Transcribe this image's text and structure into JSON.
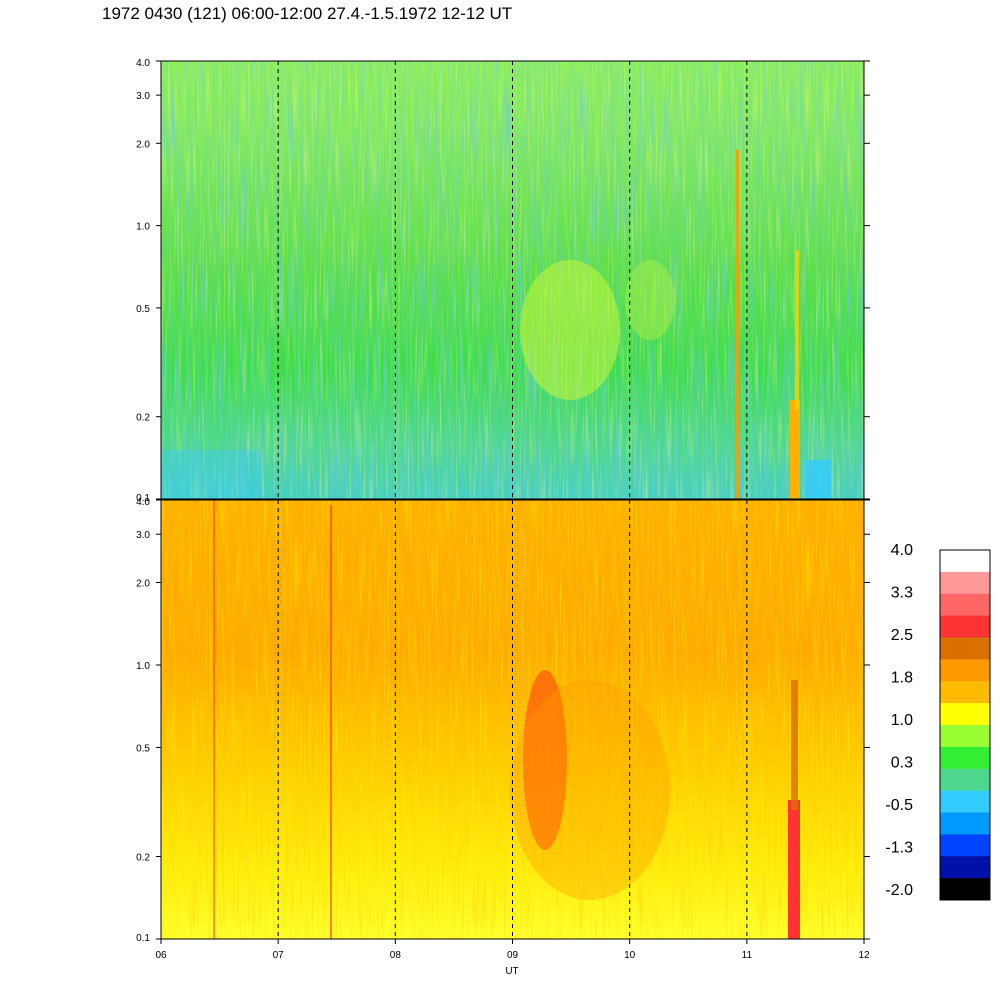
{
  "title": "1972 0430 (121) 06:00-12:00 27.4.-1.5.1972  12-12 UT",
  "chart_data": {
    "type": "heatmap",
    "title": "1972 0430 (121) 06:00-12:00 27.4.-1.5.1972  12-12 UT",
    "xlabel": "UT",
    "x_ticks": [
      "06",
      "07",
      "08",
      "09",
      "10",
      "11",
      "12"
    ],
    "x_range_hours": [
      6,
      12
    ],
    "y_scale": "log",
    "y_ticks": [
      "0.1",
      "0.2",
      "0.5",
      "1.0",
      "2.0",
      "3.0",
      "4.0"
    ],
    "y_tick_values": [
      0.1,
      0.2,
      0.5,
      1.0,
      2.0,
      3.0,
      4.0
    ],
    "ylim": [
      0.1,
      4.0
    ],
    "panels": [
      {
        "name": "upper",
        "dominant_level": 0.3,
        "notes": "mostly green/teal; yellow patch ~09-10 UT at 0.3-0.7; orange streaks near 11 and 11.4 UT"
      },
      {
        "name": "lower",
        "dominant_level": 1.8,
        "notes": "mostly yellow/orange; red band ~09.2 UT at 0.2-0.6; red streak ~11.4 UT at 0.1-0.3"
      }
    ],
    "vertical_dashed_lines_hours": [
      7,
      8,
      9,
      10,
      11
    ],
    "colorbar": {
      "tick_labels": [
        "4.0",
        "3.3",
        "2.5",
        "1.8",
        "1.0",
        "0.3",
        "-0.5",
        "-1.3",
        "-2.0"
      ],
      "colors_top_to_bottom": [
        "#ffffff",
        "#ff9999",
        "#ff6666",
        "#ff3333",
        "#d97000",
        "#ff9900",
        "#ffbb00",
        "#ffff00",
        "#99ff33",
        "#33ee33",
        "#4ed88e",
        "#33ccff",
        "#0099ff",
        "#0044ff",
        "#0011aa",
        "#000000"
      ]
    }
  }
}
